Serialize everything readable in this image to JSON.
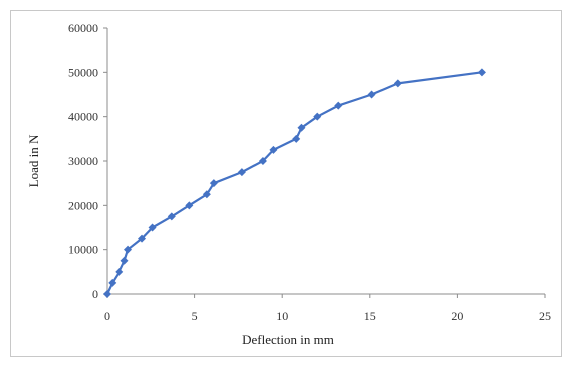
{
  "chart_data": {
    "type": "line",
    "title": "",
    "xlabel": "Deflection in mm",
    "ylabel": "Load in N",
    "xlim": [
      0,
      25
    ],
    "ylim": [
      0,
      60000
    ],
    "x_ticks": [
      0,
      5,
      10,
      15,
      20,
      25
    ],
    "y_ticks": [
      0,
      10000,
      20000,
      30000,
      40000,
      50000,
      60000
    ],
    "grid": false,
    "legend": "none",
    "series": [
      {
        "color": "#4472C4",
        "marker": "diamond",
        "points": [
          [
            0.0,
            0
          ],
          [
            0.3,
            2500
          ],
          [
            0.7,
            5000
          ],
          [
            1.0,
            7500
          ],
          [
            1.2,
            10000
          ],
          [
            2.0,
            12500
          ],
          [
            2.6,
            15000
          ],
          [
            3.7,
            17500
          ],
          [
            4.7,
            20000
          ],
          [
            5.7,
            22500
          ],
          [
            6.1,
            25000
          ],
          [
            7.7,
            27500
          ],
          [
            8.9,
            30000
          ],
          [
            9.5,
            32500
          ],
          [
            10.8,
            35000
          ],
          [
            11.1,
            37500
          ],
          [
            12.0,
            40000
          ],
          [
            13.2,
            42500
          ],
          [
            15.1,
            45000
          ],
          [
            16.6,
            47500
          ],
          [
            21.4,
            50000
          ]
        ]
      }
    ]
  }
}
